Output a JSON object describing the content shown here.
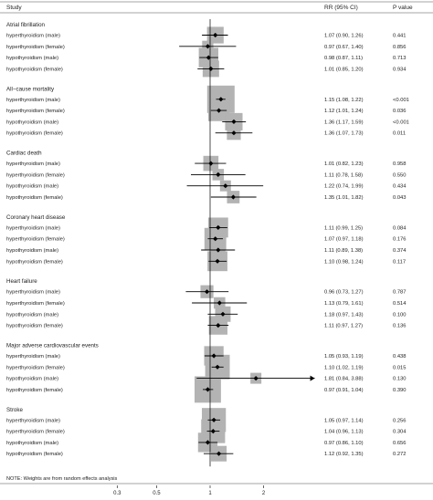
{
  "headers": {
    "study": "Study",
    "rr": "RR (95% CI)",
    "p": "P value"
  },
  "note": "NOTE: Weights are from random effects analysis",
  "chart_data": {
    "type": "forest",
    "x_scale": "log",
    "x_ticks": [
      0.3,
      0.5,
      1,
      2
    ],
    "x_tick_labels": [
      "0.3",
      "0.5",
      "1",
      "2"
    ],
    "reference_line": 1,
    "xlim": [
      0.26,
      4.0
    ],
    "groups": [
      {
        "name": "Atrial fibrillation",
        "rows": [
          {
            "label": "hyperthyroidism (male)",
            "rr": 1.07,
            "lo": 0.9,
            "hi": 1.26,
            "ci_text": "1.07 (0.90, 1.26)",
            "p": "0.441"
          },
          {
            "label": "hyperthyroidism (female)",
            "rr": 0.97,
            "lo": 0.67,
            "hi": 1.4,
            "ci_text": "0.97 (0.67, 1.40)",
            "p": "0.856"
          },
          {
            "label": "hypothyroidism (male)",
            "rr": 0.98,
            "lo": 0.87,
            "hi": 1.11,
            "ci_text": "0.98 (0.87, 1.11)",
            "p": "0.713"
          },
          {
            "label": "hypothyroidism (female)",
            "rr": 1.01,
            "lo": 0.85,
            "hi": 1.2,
            "ci_text": "1.01 (0.85, 1.20)",
            "p": "0.934"
          }
        ]
      },
      {
        "name": "All−cause mortality",
        "rows": [
          {
            "label": "hyperthyroidism (male)",
            "rr": 1.15,
            "lo": 1.08,
            "hi": 1.22,
            "ci_text": "1.15 (1.08, 1.22)",
            "p": "<0.001"
          },
          {
            "label": "hyperthyroidism (female)",
            "rr": 1.12,
            "lo": 1.01,
            "hi": 1.24,
            "ci_text": "1.12 (1.01, 1.24)",
            "p": "0.036"
          },
          {
            "label": "hypothyroidism (male)",
            "rr": 1.36,
            "lo": 1.17,
            "hi": 1.59,
            "ci_text": "1.36 (1.17, 1.59)",
            "p": "<0.001"
          },
          {
            "label": "hypothyroidism (female)",
            "rr": 1.36,
            "lo": 1.07,
            "hi": 1.73,
            "ci_text": "1.36 (1.07, 1.73)",
            "p": "0.011"
          }
        ]
      },
      {
        "name": "Cardiac death",
        "rows": [
          {
            "label": "hyperthyroidism (male)",
            "rr": 1.01,
            "lo": 0.82,
            "hi": 1.23,
            "ci_text": "1.01 (0.82, 1.23)",
            "p": "0.958"
          },
          {
            "label": "hyperthyroidism (female)",
            "rr": 1.11,
            "lo": 0.78,
            "hi": 1.58,
            "ci_text": "1.11 (0.78, 1.58)",
            "p": "0.550"
          },
          {
            "label": "hypothyroidism (male)",
            "rr": 1.22,
            "lo": 0.74,
            "hi": 1.99,
            "ci_text": "1.22 (0.74, 1.99)",
            "p": "0.434"
          },
          {
            "label": "hypothyroidism (female)",
            "rr": 1.35,
            "lo": 1.01,
            "hi": 1.82,
            "ci_text": "1.35 (1.01, 1.82)",
            "p": "0.043"
          }
        ]
      },
      {
        "name": "Coronary heart disease",
        "rows": [
          {
            "label": "hyperthyroidism (male)",
            "rr": 1.11,
            "lo": 0.99,
            "hi": 1.25,
            "ci_text": "1.11 (0.99, 1.25)",
            "p": "0.084"
          },
          {
            "label": "hyperthyroidism (female)",
            "rr": 1.07,
            "lo": 0.97,
            "hi": 1.18,
            "ci_text": "1.07 (0.97, 1.18)",
            "p": "0.176"
          },
          {
            "label": "hypothyroidism (male)",
            "rr": 1.11,
            "lo": 0.89,
            "hi": 1.38,
            "ci_text": "1.11 (0.89, 1.38)",
            "p": "0.374"
          },
          {
            "label": "hypothyroidism (female)",
            "rr": 1.1,
            "lo": 0.98,
            "hi": 1.24,
            "ci_text": "1.10 (0.98, 1.24)",
            "p": "0.117"
          }
        ]
      },
      {
        "name": "Heart failure",
        "rows": [
          {
            "label": "hyperthyroidism (male)",
            "rr": 0.96,
            "lo": 0.73,
            "hi": 1.27,
            "ci_text": "0.96 (0.73, 1.27)",
            "p": "0.787"
          },
          {
            "label": "hyperthyroidism (female)",
            "rr": 1.13,
            "lo": 0.79,
            "hi": 1.61,
            "ci_text": "1.13 (0.79, 1.61)",
            "p": "0.514"
          },
          {
            "label": "hypothyroidism (male)",
            "rr": 1.18,
            "lo": 0.97,
            "hi": 1.43,
            "ci_text": "1.18 (0.97, 1.43)",
            "p": "0.100"
          },
          {
            "label": "hypothyroidism (female)",
            "rr": 1.11,
            "lo": 0.97,
            "hi": 1.27,
            "ci_text": "1.11 (0.97, 1.27)",
            "p": "0.136"
          }
        ]
      },
      {
        "name": "Major adverse cardiovascular events",
        "rows": [
          {
            "label": "hyperthyroidism (male)",
            "rr": 1.05,
            "lo": 0.93,
            "hi": 1.19,
            "ci_text": "1.05 (0.93, 1.19)",
            "p": "0.438"
          },
          {
            "label": "hyperthyroidism (female)",
            "rr": 1.1,
            "lo": 1.02,
            "hi": 1.19,
            "ci_text": "1.10 (1.02, 1.19)",
            "p": "0.015"
          },
          {
            "label": "hypothyroidism (male)",
            "rr": 1.81,
            "lo": 0.84,
            "hi": 3.88,
            "ci_text": "1.81 (0.84, 3.88)",
            "p": "0.130"
          },
          {
            "label": "hypothyroidism (female)",
            "rr": 0.97,
            "lo": 0.91,
            "hi": 1.04,
            "ci_text": "0.97 (0.91, 1.04)",
            "p": "0.390"
          }
        ]
      },
      {
        "name": "Stroke",
        "rows": [
          {
            "label": "hyperthyroidism (male)",
            "rr": 1.05,
            "lo": 0.97,
            "hi": 1.14,
            "ci_text": "1.05 (0.97, 1.14)",
            "p": "0.256"
          },
          {
            "label": "hyperthyroidism (female)",
            "rr": 1.04,
            "lo": 0.96,
            "hi": 1.13,
            "ci_text": "1.04 (0.96, 1.13)",
            "p": "0.304"
          },
          {
            "label": "hypothyroidism (male)",
            "rr": 0.97,
            "lo": 0.86,
            "hi": 1.1,
            "ci_text": "0.97 (0.86, 1.10)",
            "p": "0.656"
          },
          {
            "label": "hypothyroidism (female)",
            "rr": 1.12,
            "lo": 0.92,
            "hi": 1.35,
            "ci_text": "1.12 (0.92, 1.35)",
            "p": "0.272"
          }
        ]
      }
    ]
  },
  "colors": {
    "box": "#b3b3b3",
    "line": "#000000",
    "text": "#222222",
    "frame": "#888888"
  }
}
